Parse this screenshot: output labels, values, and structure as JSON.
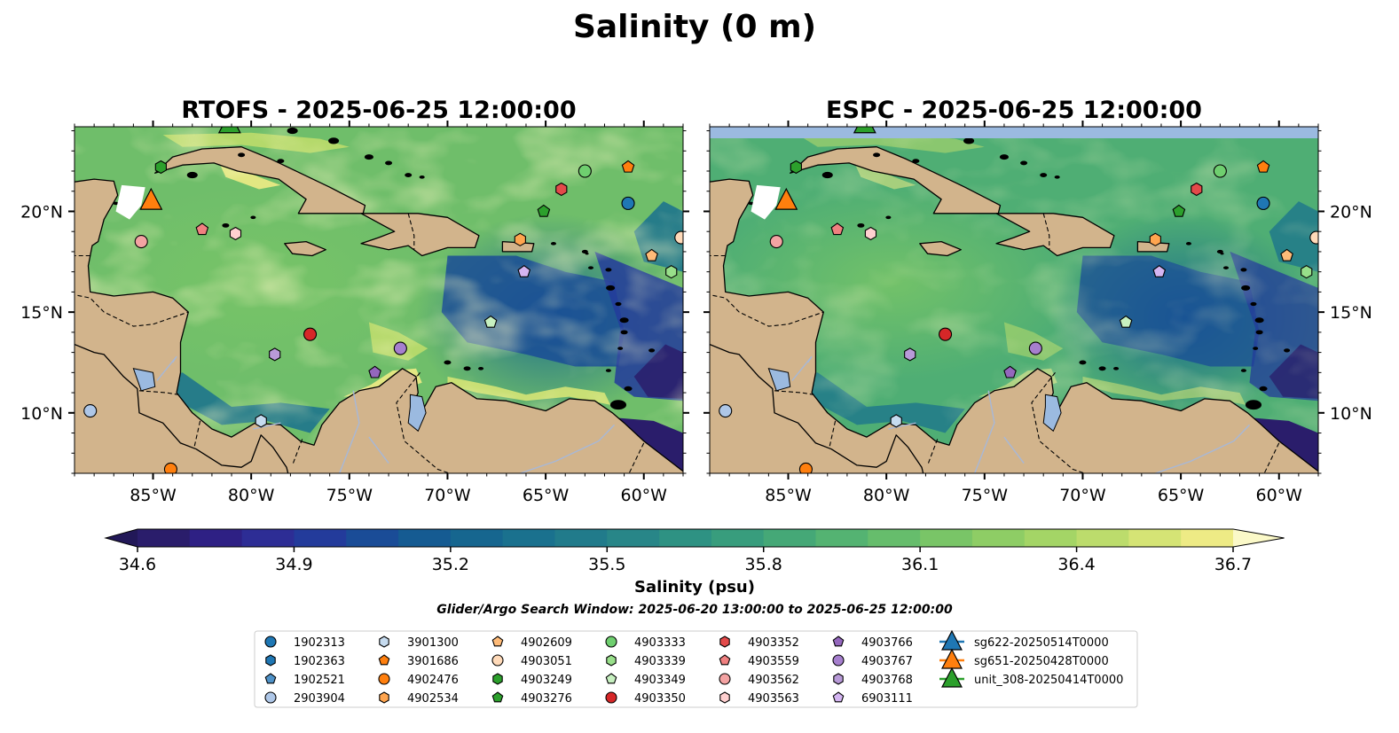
{
  "figure": {
    "title": "Salinity (0 m)",
    "search_window": "Glider/Argo Search Window: 2025-06-20 13:00:00 to 2025-06-25 12:00:00"
  },
  "panels": [
    {
      "title": "RTOFS - 2025-06-25 12:00:00",
      "espc": false
    },
    {
      "title": "ESPC - 2025-06-25 12:00:00",
      "espc": true
    }
  ],
  "map": {
    "lon_range": [
      -89,
      -58
    ],
    "lat_range": [
      7,
      24.2
    ],
    "x_ticks": [
      {
        "v": -85,
        "label": "85°W"
      },
      {
        "v": -80,
        "label": "80°W"
      },
      {
        "v": -75,
        "label": "75°W"
      },
      {
        "v": -70,
        "label": "70°W"
      },
      {
        "v": -65,
        "label": "65°W"
      },
      {
        "v": -60,
        "label": "60°W"
      }
    ],
    "y_ticks": [
      {
        "v": 10,
        "label": "10°N"
      },
      {
        "v": 15,
        "label": "15°N"
      },
      {
        "v": 20,
        "label": "20°N"
      }
    ],
    "land_color": "#d2b48c",
    "lake_color": "#9bbae0"
  },
  "colorbar": {
    "label": "Salinity (psu)",
    "min": 34.6,
    "max": 36.7,
    "ticks": [
      "34.6",
      "34.9",
      "35.2",
      "35.5",
      "35.8",
      "36.1",
      "36.4",
      "36.7"
    ],
    "colors": [
      "#2a1d6b",
      "#2e2084",
      "#2d2d95",
      "#233b9b",
      "#1a4c97",
      "#155b92",
      "#16668f",
      "#1a718e",
      "#217b8b",
      "#288688",
      "#2e9283",
      "#389d7d",
      "#45a877",
      "#54b372",
      "#66bd6c",
      "#79c567",
      "#8ecd65",
      "#a4d566",
      "#bcdc6c",
      "#d5e475",
      "#eeeb85"
    ]
  },
  "floats": [
    {
      "id": "1902313",
      "marker": "circle",
      "color": "#1f77b4",
      "lon": -60.8,
      "lat": 20.4
    },
    {
      "id": "1902363",
      "marker": "hexagon",
      "color": "#1f77b4",
      "lon": null,
      "lat": null
    },
    {
      "id": "1902521",
      "marker": "pentagon",
      "color": "#4f92c8",
      "lon": null,
      "lat": null
    },
    {
      "id": "2903904",
      "marker": "circle",
      "color": "#aec7e8",
      "lon": -88.2,
      "lat": 10.1
    },
    {
      "id": "3901300",
      "marker": "hexagon",
      "color": "#c6dbef",
      "lon": -79.5,
      "lat": 9.6
    },
    {
      "id": "3901686",
      "marker": "pentagon",
      "color": "#ff7f0e",
      "lon": -60.8,
      "lat": 22.2
    },
    {
      "id": "4902476",
      "marker": "circle",
      "color": "#ff7f0e",
      "lon": -84.1,
      "lat": 7.2
    },
    {
      "id": "4902534",
      "marker": "hexagon",
      "color": "#ffa54f",
      "lon": -66.3,
      "lat": 18.6
    },
    {
      "id": "4902609",
      "marker": "pentagon",
      "color": "#ffbb78",
      "lon": -59.6,
      "lat": 17.8
    },
    {
      "id": "4903051",
      "marker": "circle",
      "color": "#ffdab9",
      "lon": -58.1,
      "lat": 18.7
    },
    {
      "id": "4903249",
      "marker": "hexagon",
      "color": "#2ca02c",
      "lon": -84.6,
      "lat": 22.2
    },
    {
      "id": "4903276",
      "marker": "pentagon",
      "color": "#2ca02c",
      "lon": -65.1,
      "lat": 20.0
    },
    {
      "id": "4903333",
      "marker": "circle",
      "color": "#6fcf6f",
      "lon": -63.0,
      "lat": 22.0
    },
    {
      "id": "4903339",
      "marker": "hexagon",
      "color": "#98df8a",
      "lon": -58.6,
      "lat": 17.0
    },
    {
      "id": "4903349",
      "marker": "pentagon",
      "color": "#c7f0c0",
      "lon": -67.8,
      "lat": 14.5
    },
    {
      "id": "4903350",
      "marker": "circle",
      "color": "#d62728",
      "lon": -77.0,
      "lat": 13.9
    },
    {
      "id": "4903352",
      "marker": "hexagon",
      "color": "#e34a4a",
      "lon": -64.2,
      "lat": 21.1
    },
    {
      "id": "4903559",
      "marker": "pentagon",
      "color": "#f08080",
      "lon": -82.5,
      "lat": 19.1
    },
    {
      "id": "4903562",
      "marker": "circle",
      "color": "#f4a3a3",
      "lon": -85.6,
      "lat": 18.5
    },
    {
      "id": "4903563",
      "marker": "hexagon",
      "color": "#ffd0d0",
      "lon": -80.8,
      "lat": 18.9
    },
    {
      "id": "4903766",
      "marker": "pentagon",
      "color": "#9467bd",
      "lon": -73.7,
      "lat": 12.0
    },
    {
      "id": "4903767",
      "marker": "circle",
      "color": "#a67fce",
      "lon": -72.4,
      "lat": 13.2
    },
    {
      "id": "4903768",
      "marker": "hexagon",
      "color": "#b89ad8",
      "lon": -78.8,
      "lat": 12.9
    },
    {
      "id": "6903111",
      "marker": "pentagon",
      "color": "#d4b5f2",
      "lon": -66.1,
      "lat": 17.0
    }
  ],
  "gliders": [
    {
      "id": "sg622-20250514T0000",
      "color": "#1f77b4",
      "lon": null,
      "lat": null
    },
    {
      "id": "sg651-20250428T0000",
      "color": "#ff7f0e",
      "lon": -85.1,
      "lat": 20.5
    },
    {
      "id": "unit_308-20250414T0000",
      "color": "#2ca02c",
      "lon": -81.1,
      "lat": 24.3
    }
  ]
}
